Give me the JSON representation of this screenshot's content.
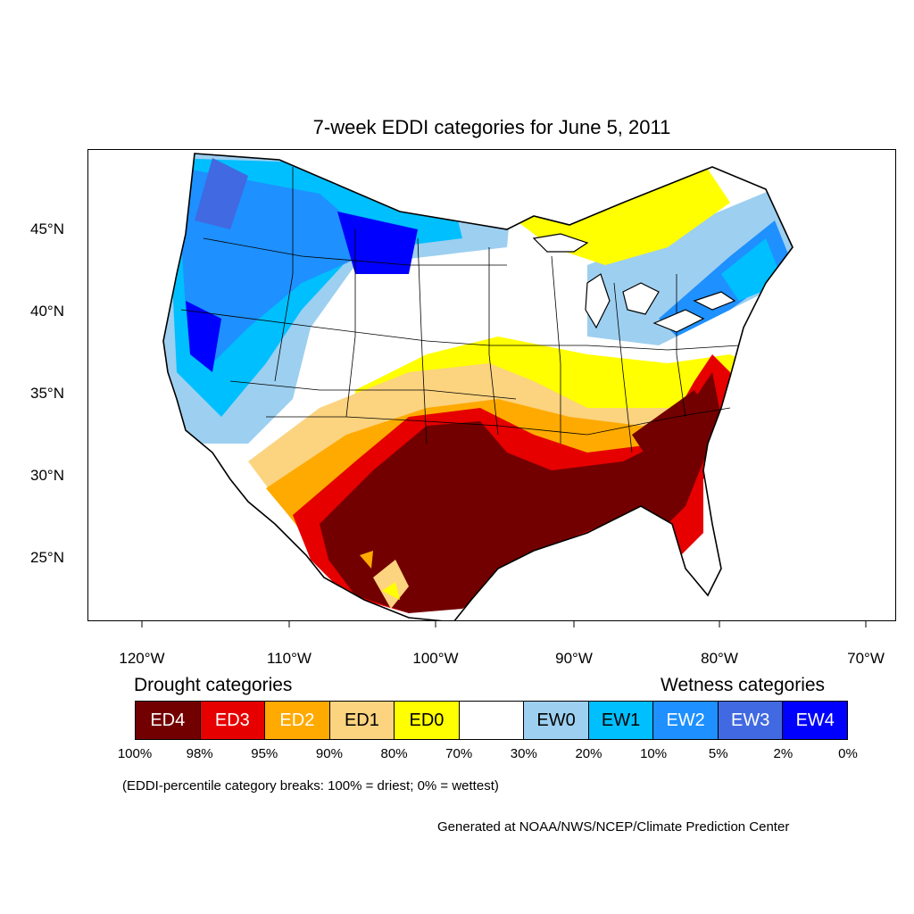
{
  "title": "7-week EDDI categories for June 5, 2011",
  "lat_labels": [
    "45°N",
    "40°N",
    "35°N",
    "30°N",
    "25°N"
  ],
  "lon_labels": [
    "120°W",
    "110°W",
    "100°W",
    "90°W",
    "80°W",
    "70°W"
  ],
  "legend": {
    "drought_heading": "Drought categories",
    "wetness_heading": "Wetness categories",
    "categories": [
      {
        "label": "ED4",
        "color": "#730000",
        "text_color": "#ffffff"
      },
      {
        "label": "ED3",
        "color": "#e60000",
        "text_color": "#ffffff"
      },
      {
        "label": "ED2",
        "color": "#ffaa00",
        "text_color": "#ffffff"
      },
      {
        "label": "ED1",
        "color": "#fcd37f",
        "text_color": "#000000"
      },
      {
        "label": "ED0",
        "color": "#ffff00",
        "text_color": "#000000"
      },
      {
        "label": "",
        "color": "#ffffff",
        "text_color": "#000000"
      },
      {
        "label": "EW0",
        "color": "#9dcff0",
        "text_color": "#000000"
      },
      {
        "label": "EW1",
        "color": "#00bfff",
        "text_color": "#000000"
      },
      {
        "label": "EW2",
        "color": "#1e90ff",
        "text_color": "#ffffff"
      },
      {
        "label": "EW3",
        "color": "#4169e1",
        "text_color": "#ffffff"
      },
      {
        "label": "EW4",
        "color": "#0000ff",
        "text_color": "#ffffff"
      }
    ],
    "breaks": [
      "100%",
      "98%",
      "95%",
      "90%",
      "80%",
      "70%",
      "30%",
      "20%",
      "10%",
      "5%",
      "2%",
      "0%"
    ],
    "note": "(EDDI-percentile category breaks: 100% = driest; 0% = wettest)"
  },
  "credit": "Generated at NOAA/NWS/NCEP/Climate Prediction Center"
}
